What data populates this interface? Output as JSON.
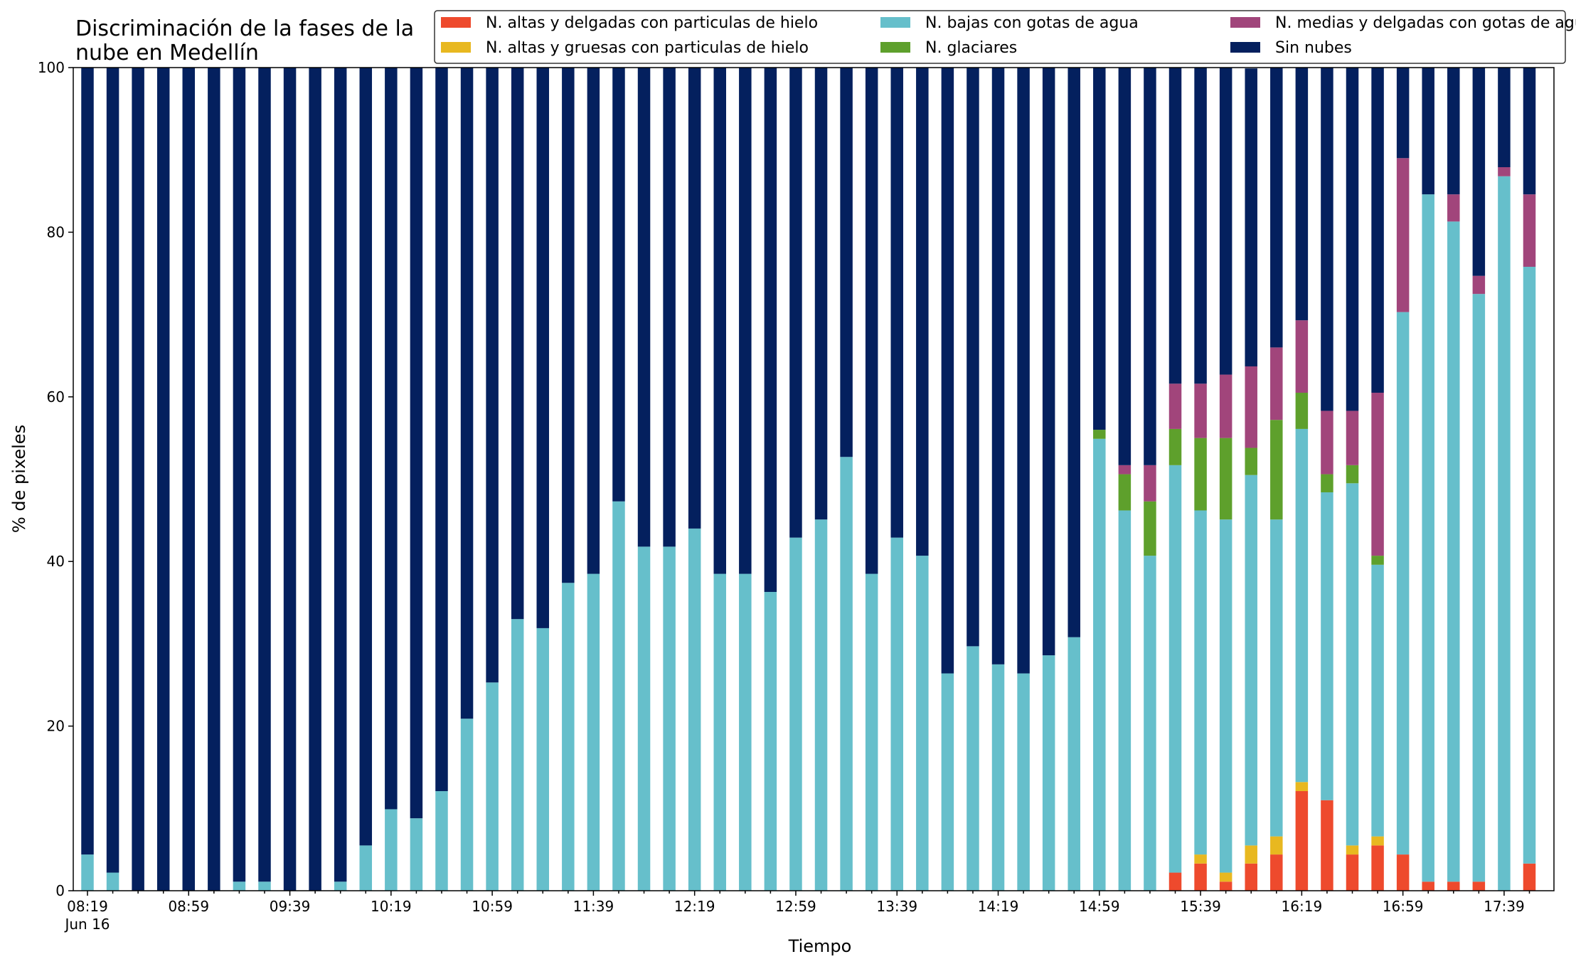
{
  "chart_data": {
    "type": "bar",
    "stacked": true,
    "title": "Discriminación de la fases de la\nnube en Medellín",
    "xlabel": "Tiempo",
    "ylabel": "% de pixeles",
    "ylim": [
      0,
      100
    ],
    "yticks": [
      0,
      20,
      40,
      60,
      80,
      100
    ],
    "grid": false,
    "legend_position": "top-right",
    "x_tick_labels": [
      "08:19",
      "08:59",
      "09:39",
      "10:19",
      "10:59",
      "11:39",
      "12:19",
      "12:59",
      "13:39",
      "14:19",
      "14:59",
      "15:39",
      "16:19",
      "16:59",
      "17:39"
    ],
    "x_date_label": "Jun 16",
    "categories": [
      "08:19",
      "08:29",
      "08:39",
      "08:49",
      "08:59",
      "09:09",
      "09:19",
      "09:29",
      "09:39",
      "09:49",
      "09:59",
      "10:09",
      "10:19",
      "10:29",
      "10:39",
      "10:49",
      "10:59",
      "11:09",
      "11:19",
      "11:29",
      "11:39",
      "11:49",
      "11:59",
      "12:09",
      "12:19",
      "12:29",
      "12:39",
      "12:49",
      "12:59",
      "13:09",
      "13:19",
      "13:29",
      "13:39",
      "13:49",
      "13:59",
      "14:09",
      "14:19",
      "14:29",
      "14:39",
      "14:49",
      "14:59",
      "15:09",
      "15:19",
      "15:29",
      "15:39",
      "15:49",
      "15:59",
      "16:09",
      "16:19",
      "16:29",
      "16:39",
      "16:49",
      "16:59",
      "17:09",
      "17:19",
      "17:29",
      "17:39",
      "17:49"
    ],
    "series": [
      {
        "name": "N. altas y delgadas con particulas de hielo",
        "color": "#ee4a2d",
        "values": [
          0,
          0,
          0,
          0,
          0,
          0,
          0,
          0,
          0,
          0,
          0,
          0,
          0,
          0,
          0,
          0,
          0,
          0,
          0,
          0,
          0,
          0,
          0,
          0,
          0,
          0,
          0,
          0,
          0,
          0,
          0,
          0,
          0,
          0,
          0,
          0,
          0,
          0,
          0,
          0,
          0,
          0,
          0,
          2.2,
          3.3,
          1.1,
          3.3,
          4.4,
          12.1,
          11.0,
          4.4,
          5.5,
          4.4,
          1.1,
          1.1,
          1.1,
          0,
          3.3
        ]
      },
      {
        "name": "N. altas y gruesas con particulas de hielo",
        "color": "#e8b820",
        "values": [
          0,
          0,
          0,
          0,
          0,
          0,
          0,
          0,
          0,
          0,
          0,
          0,
          0,
          0,
          0,
          0,
          0,
          0,
          0,
          0,
          0,
          0,
          0,
          0,
          0,
          0,
          0,
          0,
          0,
          0,
          0,
          0,
          0,
          0,
          0,
          0,
          0,
          0,
          0,
          0,
          0,
          0,
          0,
          0,
          1.1,
          1.1,
          2.2,
          2.2,
          1.1,
          0,
          1.1,
          1.1,
          0,
          0,
          0,
          0,
          0,
          0
        ]
      },
      {
        "name": "N. bajas con gotas de agua",
        "color": "#66bfcb",
        "values": [
          4.4,
          2.2,
          0,
          0,
          0,
          0,
          1.1,
          1.1,
          0,
          0,
          1.1,
          5.5,
          9.9,
          8.8,
          12.1,
          20.9,
          25.3,
          33.0,
          31.9,
          37.4,
          38.5,
          47.3,
          41.8,
          41.8,
          44.0,
          38.5,
          38.5,
          36.3,
          42.9,
          45.1,
          52.7,
          38.5,
          42.9,
          40.7,
          26.4,
          29.7,
          27.5,
          26.4,
          28.6,
          30.8,
          54.9,
          46.2,
          40.7,
          49.5,
          41.8,
          42.9,
          45.0,
          38.5,
          42.9,
          37.4,
          44.0,
          33.0,
          65.9,
          83.5,
          80.2,
          71.4,
          86.8,
          72.5
        ]
      },
      {
        "name": "N. glaciares",
        "color": "#5ea02c",
        "values": [
          0,
          0,
          0,
          0,
          0,
          0,
          0,
          0,
          0,
          0,
          0,
          0,
          0,
          0,
          0,
          0,
          0,
          0,
          0,
          0,
          0,
          0,
          0,
          0,
          0,
          0,
          0,
          0,
          0,
          0,
          0,
          0,
          0,
          0,
          0,
          0,
          0,
          0,
          0,
          0,
          1.1,
          4.4,
          6.6,
          4.4,
          8.8,
          9.9,
          3.3,
          12.1,
          4.4,
          2.2,
          2.2,
          1.1,
          0,
          0,
          0,
          0,
          0,
          0
        ]
      },
      {
        "name": "N. medias y delgadas con gotas de agua",
        "color": "#a1457b",
        "values": [
          0,
          0,
          0,
          0,
          0,
          0,
          0,
          0,
          0,
          0,
          0,
          0,
          0,
          0,
          0,
          0,
          0,
          0,
          0,
          0,
          0,
          0,
          0,
          0,
          0,
          0,
          0,
          0,
          0,
          0,
          0,
          0,
          0,
          0,
          0,
          0,
          0,
          0,
          0,
          0,
          0,
          1.1,
          4.4,
          5.5,
          6.6,
          7.7,
          9.9,
          8.8,
          8.8,
          7.7,
          6.6,
          19.8,
          18.7,
          0,
          3.3,
          2.2,
          1.1,
          8.8
        ]
      },
      {
        "name": "Sin nubes",
        "color": "#04205e",
        "values": [
          95.6,
          97.8,
          100,
          100,
          100,
          100,
          98.9,
          98.9,
          100,
          100,
          98.9,
          94.5,
          90.1,
          91.2,
          87.9,
          79.1,
          74.7,
          67.0,
          68.1,
          62.6,
          61.5,
          52.7,
          58.2,
          58.2,
          56.0,
          61.5,
          61.5,
          63.7,
          57.1,
          54.9,
          47.3,
          61.5,
          57.1,
          59.3,
          73.6,
          70.3,
          72.5,
          73.6,
          71.4,
          69.2,
          44.0,
          48.3,
          48.3,
          38.4,
          38.4,
          37.3,
          36.2,
          34.0,
          30.7,
          41.7,
          41.7,
          39.5,
          11.0,
          15.4,
          15.4,
          25.3,
          12.1,
          15.4
        ]
      }
    ]
  }
}
